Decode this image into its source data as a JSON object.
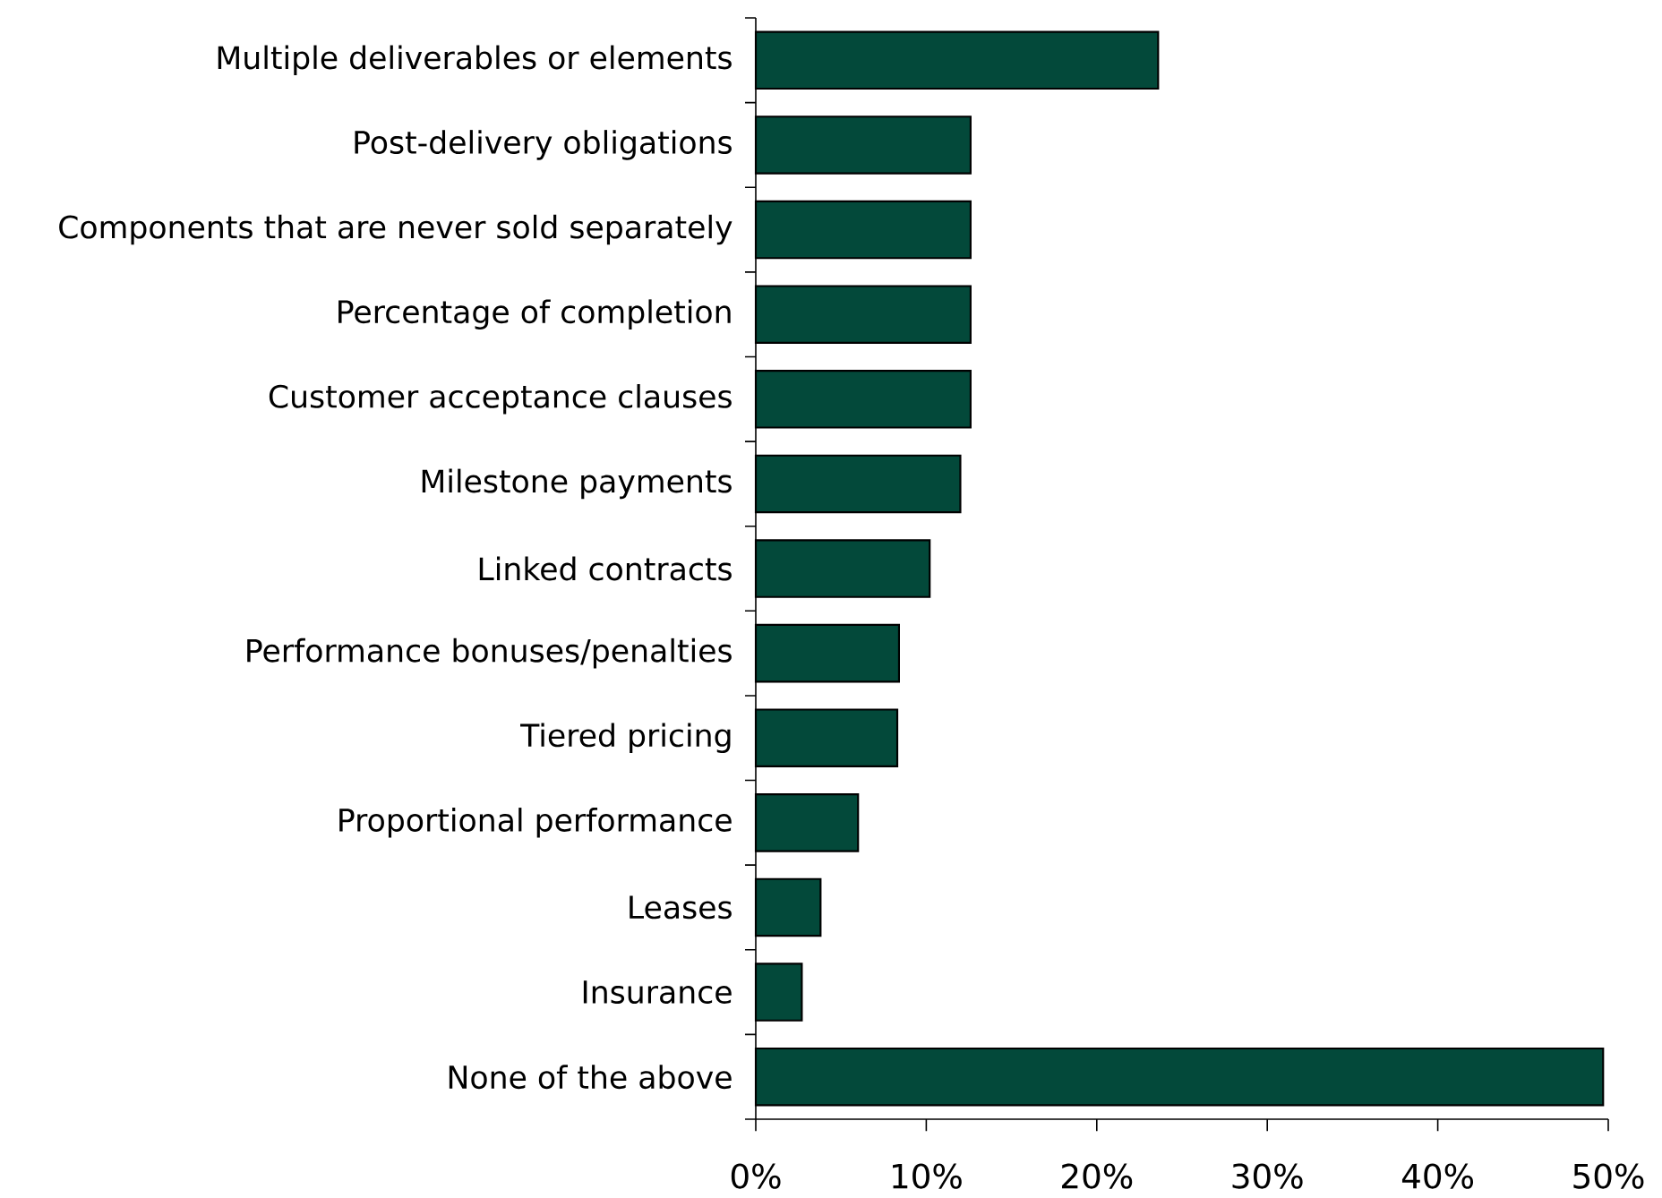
{
  "chart_data": {
    "type": "bar",
    "orientation": "horizontal",
    "categories": [
      "Multiple deliverables or elements",
      "Post-delivery obligations",
      "Components that are never sold separately",
      "Percentage of completion",
      "Customer acceptance clauses",
      "Milestone payments",
      "Linked contracts",
      "Performance bonuses/penalties",
      "Tiered pricing",
      "Proportional performance",
      "Leases",
      "Insurance",
      "None of the above"
    ],
    "values": [
      23.6,
      12.6,
      12.6,
      12.6,
      12.6,
      12.0,
      10.2,
      8.4,
      8.3,
      6.0,
      3.8,
      2.7,
      49.7
    ],
    "color": "#03493a",
    "xlim": [
      0,
      50
    ],
    "xticks": [
      {
        "value": 0,
        "label": "0%"
      },
      {
        "value": 10,
        "label": "10%"
      },
      {
        "value": 20,
        "label": "20%"
      },
      {
        "value": 30,
        "label": "30%"
      },
      {
        "value": 40,
        "label": "40%"
      },
      {
        "value": 50,
        "label": "50%"
      }
    ],
    "grid": false
  }
}
